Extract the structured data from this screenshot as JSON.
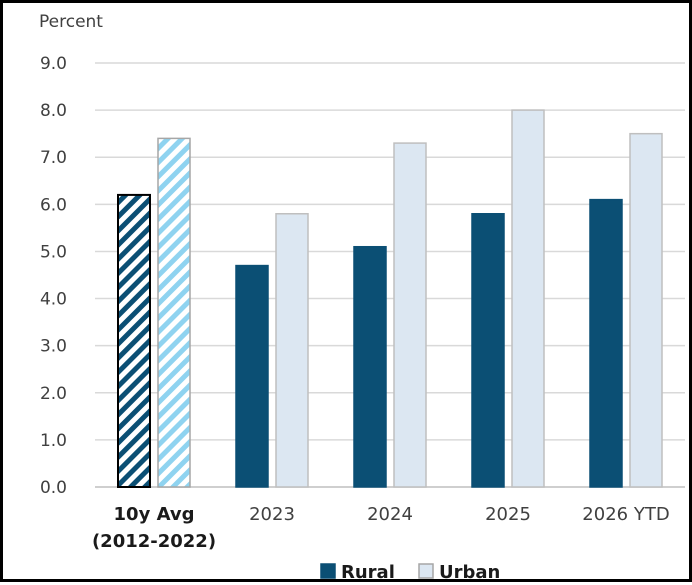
{
  "chart_data": {
    "type": "bar",
    "ylabel": "Percent",
    "ylim": [
      0,
      9
    ],
    "yticks": [
      "0.0",
      "1.0",
      "2.0",
      "3.0",
      "4.0",
      "5.0",
      "6.0",
      "7.0",
      "8.0",
      "9.0"
    ],
    "grid": true,
    "legend_position": "bottom",
    "categories": [
      {
        "lines": [
          "10y Avg",
          "(2012-2022)"
        ],
        "bold": true,
        "hatched": true
      },
      {
        "lines": [
          "2023"
        ],
        "bold": false,
        "hatched": false
      },
      {
        "lines": [
          "2024"
        ],
        "bold": false,
        "hatched": false
      },
      {
        "lines": [
          "2025"
        ],
        "bold": false,
        "hatched": false
      },
      {
        "lines": [
          "2026 YTD"
        ],
        "bold": false,
        "hatched": false
      }
    ],
    "series": [
      {
        "name": "Rural",
        "color": "#0b4f74",
        "values": [
          6.2,
          4.7,
          5.1,
          5.8,
          6.1
        ]
      },
      {
        "name": "Urban",
        "color": "#dce7f2",
        "hatch_color": "#8fd3f0",
        "values": [
          7.4,
          5.8,
          7.3,
          8.0,
          7.5
        ]
      }
    ]
  }
}
